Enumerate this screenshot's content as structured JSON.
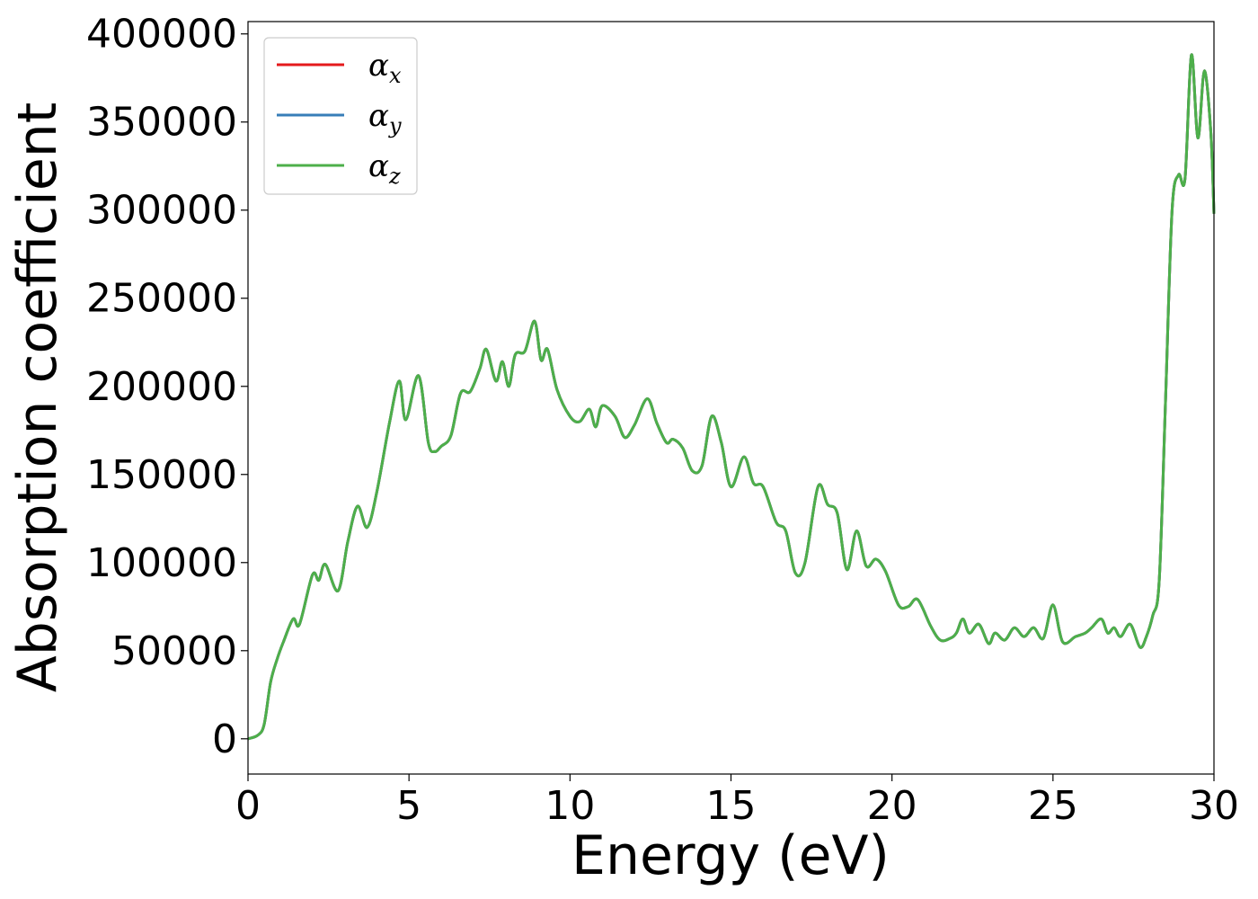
{
  "chart_data": {
    "type": "line",
    "title": "",
    "xlabel": "Energy (eV)",
    "ylabel": "Absorption coefficient",
    "xlim": [
      0,
      30
    ],
    "ylim": [
      -20000,
      407000
    ],
    "xticks": [
      0,
      5,
      10,
      15,
      20,
      25,
      30
    ],
    "xtick_labels": [
      "0",
      "5",
      "10",
      "15",
      "20",
      "25",
      "30"
    ],
    "yticks": [
      0,
      50000,
      100000,
      150000,
      200000,
      250000,
      300000,
      350000,
      400000
    ],
    "ytick_labels": [
      "0",
      "50000",
      "100000",
      "150000",
      "200000",
      "250000",
      "300000",
      "350000",
      "400000"
    ],
    "grid": false,
    "legend_position": "top-left",
    "x": [
      0,
      0.3,
      0.5,
      0.7,
      0.9,
      1.1,
      1.4,
      1.6,
      2.0,
      2.2,
      2.4,
      2.8,
      3.1,
      3.4,
      3.7,
      4.0,
      4.4,
      4.7,
      4.9,
      5.3,
      5.6,
      5.8,
      6.0,
      6.3,
      6.6,
      6.9,
      7.2,
      7.4,
      7.7,
      7.9,
      8.1,
      8.3,
      8.6,
      8.9,
      9.1,
      9.3,
      9.6,
      10.0,
      10.3,
      10.6,
      10.8,
      11.0,
      11.4,
      11.7,
      12.0,
      12.4,
      12.7,
      13.0,
      13.2,
      13.5,
      13.8,
      14.1,
      14.4,
      14.7,
      15.0,
      15.4,
      15.7,
      16.0,
      16.4,
      16.7,
      17.0,
      17.3,
      17.7,
      18.0,
      18.3,
      18.6,
      18.9,
      19.2,
      19.5,
      19.8,
      20.2,
      20.5,
      20.8,
      21.2,
      21.5,
      21.8,
      22.0,
      22.2,
      22.4,
      22.7,
      23.0,
      23.2,
      23.5,
      23.8,
      24.1,
      24.4,
      24.7,
      25.0,
      25.3,
      25.7,
      26.0,
      26.2,
      26.5,
      26.7,
      26.9,
      27.1,
      27.4,
      27.7,
      27.9,
      28.1,
      28.3,
      28.5,
      28.7,
      28.9,
      29.1,
      29.3,
      29.5,
      29.7,
      29.9,
      30.0
    ],
    "series": [
      {
        "name": "α_x",
        "color": "#e41a1c",
        "values": [
          0,
          2000,
          8000,
          32000,
          45000,
          55000,
          68000,
          65000,
          93000,
          90000,
          99000,
          84000,
          112000,
          132000,
          120000,
          140000,
          180000,
          203000,
          181000,
          206000,
          168000,
          163000,
          166000,
          172000,
          196000,
          197000,
          210000,
          221000,
          203000,
          214000,
          200000,
          218000,
          220000,
          237000,
          215000,
          221000,
          198000,
          183000,
          180000,
          187000,
          177000,
          189000,
          183000,
          171000,
          178000,
          193000,
          179000,
          168000,
          170000,
          165000,
          152000,
          155000,
          183000,
          168000,
          143000,
          160000,
          145000,
          143000,
          123000,
          118000,
          94000,
          100000,
          143000,
          133000,
          128000,
          96000,
          118000,
          98000,
          102000,
          95000,
          76000,
          75000,
          79000,
          64000,
          56000,
          57000,
          60000,
          68000,
          60000,
          65000,
          54000,
          60000,
          56000,
          63000,
          58000,
          63000,
          57000,
          76000,
          55000,
          58000,
          60000,
          63000,
          68000,
          60000,
          63000,
          58000,
          65000,
          52000,
          58000,
          70000,
          90000,
          195000,
          300000,
          320000,
          318000,
          388000,
          341000,
          379000,
          345000,
          298000
        ]
      },
      {
        "name": "α_y",
        "color": "#377eb8",
        "values": [
          0,
          2000,
          8000,
          32000,
          45000,
          55000,
          68000,
          65000,
          93000,
          90000,
          99000,
          84000,
          112000,
          132000,
          120000,
          140000,
          180000,
          203000,
          181000,
          206000,
          168000,
          163000,
          166000,
          172000,
          196000,
          197000,
          210000,
          221000,
          203000,
          214000,
          200000,
          218000,
          220000,
          237000,
          215000,
          221000,
          198000,
          183000,
          180000,
          187000,
          177000,
          189000,
          183000,
          171000,
          178000,
          193000,
          179000,
          168000,
          170000,
          165000,
          152000,
          155000,
          183000,
          168000,
          143000,
          160000,
          145000,
          143000,
          123000,
          118000,
          94000,
          100000,
          143000,
          133000,
          128000,
          96000,
          118000,
          98000,
          102000,
          95000,
          76000,
          75000,
          79000,
          64000,
          56000,
          57000,
          60000,
          68000,
          60000,
          65000,
          54000,
          60000,
          56000,
          63000,
          58000,
          63000,
          57000,
          76000,
          55000,
          58000,
          60000,
          63000,
          68000,
          60000,
          63000,
          58000,
          65000,
          52000,
          58000,
          70000,
          90000,
          195000,
          300000,
          320000,
          318000,
          388000,
          341000,
          379000,
          345000,
          298000
        ]
      },
      {
        "name": "α_z",
        "color": "#4daf4a",
        "values": [
          0,
          2000,
          8000,
          32000,
          45000,
          55000,
          68000,
          65000,
          93000,
          90000,
          99000,
          84000,
          112000,
          132000,
          120000,
          140000,
          180000,
          203000,
          181000,
          206000,
          168000,
          163000,
          166000,
          172000,
          196000,
          197000,
          210000,
          221000,
          203000,
          214000,
          200000,
          218000,
          220000,
          237000,
          215000,
          221000,
          198000,
          183000,
          180000,
          187000,
          177000,
          189000,
          183000,
          171000,
          178000,
          193000,
          179000,
          168000,
          170000,
          165000,
          152000,
          155000,
          183000,
          168000,
          143000,
          160000,
          145000,
          143000,
          123000,
          118000,
          94000,
          100000,
          143000,
          133000,
          128000,
          96000,
          118000,
          98000,
          102000,
          95000,
          76000,
          75000,
          79000,
          64000,
          56000,
          57000,
          60000,
          68000,
          60000,
          65000,
          54000,
          60000,
          56000,
          63000,
          58000,
          63000,
          57000,
          76000,
          55000,
          58000,
          60000,
          63000,
          68000,
          60000,
          63000,
          58000,
          65000,
          52000,
          58000,
          70000,
          90000,
          195000,
          300000,
          320000,
          318000,
          388000,
          341000,
          379000,
          345000,
          298000
        ]
      }
    ],
    "legend": {
      "entries": [
        {
          "symbol": "α",
          "sub": "x"
        },
        {
          "symbol": "α",
          "sub": "y"
        },
        {
          "symbol": "α",
          "sub": "z"
        }
      ]
    }
  }
}
